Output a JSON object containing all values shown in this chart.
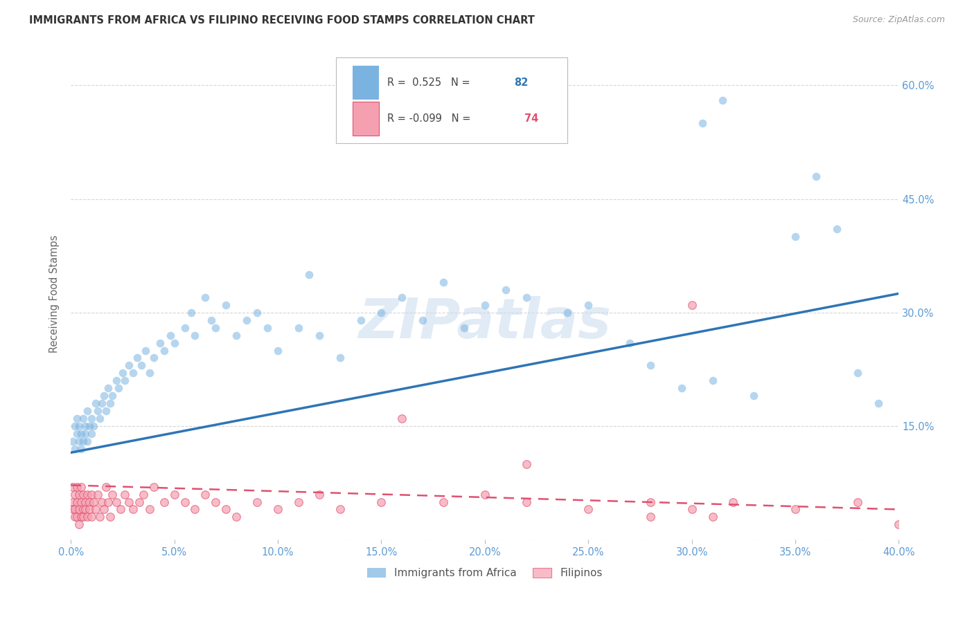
{
  "title": "IMMIGRANTS FROM AFRICA VS FILIPINO RECEIVING FOOD STAMPS CORRELATION CHART",
  "source": "Source: ZipAtlas.com",
  "ylabel": "Receiving Food Stamps",
  "xlim": [
    0.0,
    0.4
  ],
  "ylim": [
    0.0,
    0.65
  ],
  "title_color": "#333333",
  "source_color": "#999999",
  "axis_label_color": "#5b9bd5",
  "grid_color": "#cccccc",
  "background_color": "#ffffff",
  "watermark": "ZIPatlas",
  "legend_label1": "Immigrants from Africa",
  "legend_label2": "Filipinos",
  "blue_color": "#7ab3e0",
  "blue_fill": "#aecde8",
  "pink_color": "#f4a0b0",
  "blue_line_color": "#2e75b6",
  "pink_line_color": "#e05070",
  "scatter_alpha": 0.55,
  "scatter_size": 70,
  "africa_x": [
    0.001,
    0.002,
    0.002,
    0.003,
    0.003,
    0.004,
    0.004,
    0.005,
    0.005,
    0.006,
    0.006,
    0.007,
    0.007,
    0.008,
    0.008,
    0.009,
    0.01,
    0.01,
    0.011,
    0.012,
    0.013,
    0.014,
    0.015,
    0.016,
    0.017,
    0.018,
    0.019,
    0.02,
    0.022,
    0.023,
    0.025,
    0.026,
    0.028,
    0.03,
    0.032,
    0.034,
    0.036,
    0.038,
    0.04,
    0.043,
    0.045,
    0.048,
    0.05,
    0.055,
    0.058,
    0.06,
    0.065,
    0.068,
    0.07,
    0.075,
    0.08,
    0.085,
    0.09,
    0.095,
    0.1,
    0.11,
    0.115,
    0.12,
    0.13,
    0.14,
    0.15,
    0.16,
    0.17,
    0.18,
    0.19,
    0.2,
    0.21,
    0.22,
    0.24,
    0.25,
    0.27,
    0.28,
    0.295,
    0.31,
    0.33,
    0.35,
    0.36,
    0.37,
    0.38,
    0.39,
    0.305,
    0.315
  ],
  "africa_y": [
    0.13,
    0.12,
    0.15,
    0.14,
    0.16,
    0.13,
    0.15,
    0.12,
    0.14,
    0.13,
    0.16,
    0.14,
    0.15,
    0.13,
    0.17,
    0.15,
    0.14,
    0.16,
    0.15,
    0.18,
    0.17,
    0.16,
    0.18,
    0.19,
    0.17,
    0.2,
    0.18,
    0.19,
    0.21,
    0.2,
    0.22,
    0.21,
    0.23,
    0.22,
    0.24,
    0.23,
    0.25,
    0.22,
    0.24,
    0.26,
    0.25,
    0.27,
    0.26,
    0.28,
    0.3,
    0.27,
    0.32,
    0.29,
    0.28,
    0.31,
    0.27,
    0.29,
    0.3,
    0.28,
    0.25,
    0.28,
    0.35,
    0.27,
    0.24,
    0.29,
    0.3,
    0.32,
    0.29,
    0.34,
    0.28,
    0.31,
    0.33,
    0.32,
    0.3,
    0.31,
    0.26,
    0.23,
    0.2,
    0.21,
    0.19,
    0.4,
    0.48,
    0.41,
    0.22,
    0.18,
    0.55,
    0.58
  ],
  "filipino_x": [
    0.001,
    0.001,
    0.001,
    0.002,
    0.002,
    0.002,
    0.003,
    0.003,
    0.003,
    0.004,
    0.004,
    0.004,
    0.005,
    0.005,
    0.005,
    0.006,
    0.006,
    0.006,
    0.007,
    0.007,
    0.008,
    0.008,
    0.009,
    0.009,
    0.01,
    0.01,
    0.011,
    0.012,
    0.013,
    0.014,
    0.015,
    0.016,
    0.017,
    0.018,
    0.019,
    0.02,
    0.022,
    0.024,
    0.026,
    0.028,
    0.03,
    0.033,
    0.035,
    0.038,
    0.04,
    0.045,
    0.05,
    0.055,
    0.06,
    0.065,
    0.07,
    0.075,
    0.08,
    0.09,
    0.1,
    0.11,
    0.12,
    0.13,
    0.15,
    0.16,
    0.18,
    0.2,
    0.22,
    0.25,
    0.28,
    0.3,
    0.32,
    0.35,
    0.38,
    0.4,
    0.28,
    0.3,
    0.31,
    0.22
  ],
  "filipino_y": [
    0.07,
    0.05,
    0.04,
    0.06,
    0.04,
    0.03,
    0.07,
    0.05,
    0.03,
    0.06,
    0.04,
    0.02,
    0.07,
    0.05,
    0.03,
    0.06,
    0.04,
    0.03,
    0.05,
    0.04,
    0.06,
    0.03,
    0.05,
    0.04,
    0.06,
    0.03,
    0.05,
    0.04,
    0.06,
    0.03,
    0.05,
    0.04,
    0.07,
    0.05,
    0.03,
    0.06,
    0.05,
    0.04,
    0.06,
    0.05,
    0.04,
    0.05,
    0.06,
    0.04,
    0.07,
    0.05,
    0.06,
    0.05,
    0.04,
    0.06,
    0.05,
    0.04,
    0.03,
    0.05,
    0.04,
    0.05,
    0.06,
    0.04,
    0.05,
    0.16,
    0.05,
    0.06,
    0.05,
    0.04,
    0.05,
    0.31,
    0.05,
    0.04,
    0.05,
    0.02,
    0.03,
    0.04,
    0.03,
    0.1
  ],
  "africa_line_x": [
    0.0,
    0.4
  ],
  "africa_line_y": [
    0.115,
    0.325
  ],
  "filipino_line_x": [
    0.0,
    0.4
  ],
  "filipino_line_y": [
    0.072,
    0.04
  ]
}
